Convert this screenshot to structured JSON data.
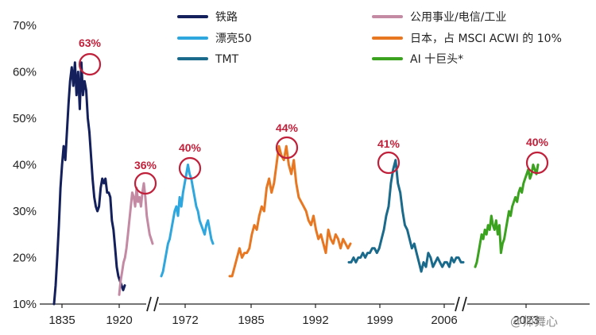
{
  "chart_data": {
    "type": "line",
    "title": "",
    "xlabel": "",
    "ylabel": "",
    "ylim": [
      10,
      70
    ],
    "y_ticks": [
      "10%",
      "20%",
      "30%",
      "40%",
      "50%",
      "60%",
      "70%"
    ],
    "x_ticks": [
      "1835",
      "1920",
      "1972",
      "1985",
      "1992",
      "1999",
      "2006",
      "2023"
    ],
    "axis_breaks": 2,
    "legend_position": "top, two columns",
    "series": [
      {
        "name": "铁路",
        "color": "#13205c",
        "peak_label": "63%",
        "x": [
          0,
          1,
          2,
          3,
          4,
          5,
          6,
          7,
          8,
          9,
          10,
          11,
          12,
          13,
          14,
          15,
          16,
          17,
          18,
          19,
          20,
          21,
          22,
          23,
          24,
          25,
          26,
          27,
          28,
          29,
          30,
          31,
          32,
          33,
          34,
          35,
          36,
          37,
          38,
          39,
          40,
          41,
          42,
          43,
          44
        ],
        "values": [
          10,
          14,
          20,
          27,
          35,
          40,
          44,
          41,
          47,
          53,
          58,
          61,
          57,
          62,
          55,
          60,
          52,
          62,
          55,
          58,
          56,
          50,
          47,
          42,
          37,
          33,
          31,
          30,
          31,
          35,
          37,
          36,
          37,
          34,
          34,
          33,
          28,
          26,
          22,
          18,
          16,
          15,
          14,
          13,
          14
        ]
      },
      {
        "name": "公用事业/电信/工业",
        "color": "#c48aa3",
        "peak_label": "36%",
        "x": [
          0,
          1,
          2,
          3,
          4,
          5,
          6,
          7,
          8,
          9,
          10,
          11,
          12,
          13,
          14,
          15,
          16,
          17,
          18,
          19,
          20,
          21,
          22,
          23
        ],
        "values": [
          12,
          15,
          17,
          19,
          20,
          22,
          25,
          28,
          31,
          34,
          33,
          31,
          35,
          32,
          33,
          31,
          34,
          36,
          33,
          29,
          27,
          25,
          24,
          23
        ]
      },
      {
        "name": "漂亮50",
        "color": "#2ea6de",
        "peak_label": "40%",
        "x": [
          0,
          1,
          2,
          3,
          4,
          5,
          6,
          7,
          8,
          9,
          10,
          11,
          12,
          13,
          14,
          15,
          16,
          17,
          18,
          19,
          20,
          21,
          22,
          23,
          24,
          25,
          26,
          27,
          28,
          29,
          30,
          31
        ],
        "values": [
          16,
          17,
          19,
          21,
          23,
          24,
          26,
          28,
          30,
          31,
          29,
          33,
          31,
          34,
          36,
          38,
          40,
          38,
          37,
          35,
          33,
          31,
          30,
          28,
          27,
          26,
          25,
          27,
          28,
          26,
          24,
          23
        ]
      },
      {
        "name": "日本，占 MSCI ACWI 的 10%",
        "color": "#e87722",
        "peak_label": "44%",
        "x": [
          0,
          1,
          2,
          3,
          4,
          5,
          6,
          7,
          8,
          9,
          10,
          11,
          12,
          13,
          14,
          15,
          16,
          17,
          18,
          19,
          20,
          21,
          22,
          23,
          24,
          25,
          26,
          27,
          28,
          29,
          30,
          31,
          32,
          33,
          34,
          35,
          36,
          37,
          38,
          39,
          40,
          41,
          42,
          43,
          44,
          45,
          46,
          47,
          48,
          49
        ],
        "values": [
          16,
          16,
          18,
          20,
          22,
          20,
          21,
          21,
          22,
          25,
          27,
          26,
          29,
          31,
          30,
          35,
          37,
          34,
          36,
          40,
          44,
          42,
          41,
          44,
          40,
          38,
          41,
          36,
          33,
          32,
          31,
          30,
          28,
          27,
          29,
          26,
          24,
          25,
          23,
          21,
          26,
          24,
          23,
          25,
          24,
          22,
          24,
          23,
          22,
          23
        ]
      },
      {
        "name": "TMT",
        "color": "#1a6a8c",
        "peak_label": "41%",
        "x": [
          0,
          1,
          2,
          3,
          4,
          5,
          6,
          7,
          8,
          9,
          10,
          11,
          12,
          13,
          14,
          15,
          16,
          17,
          18,
          19,
          20,
          21,
          22,
          23,
          24,
          25,
          26,
          27,
          28,
          29,
          30,
          31,
          32,
          33,
          34,
          35,
          36,
          37,
          38,
          39,
          40,
          41,
          42,
          43,
          44,
          45,
          46,
          47,
          48,
          49
        ],
        "values": [
          19,
          19,
          20,
          19,
          20,
          20,
          21,
          20,
          21,
          21,
          22,
          22,
          21,
          22,
          24,
          26,
          29,
          31,
          36,
          39,
          41,
          36,
          34,
          30,
          27,
          26,
          24,
          22,
          23,
          21,
          19,
          17,
          19,
          18,
          21,
          20,
          18,
          19,
          20,
          19,
          18,
          19,
          19,
          18,
          20,
          19,
          20,
          20,
          19,
          19
        ]
      },
      {
        "name": "AI 十巨头*",
        "color": "#3aa21e",
        "peak_label": "40%",
        "x": [
          0,
          1,
          2,
          3,
          4,
          5,
          6,
          7,
          8,
          9,
          10,
          11,
          12,
          13,
          14,
          15,
          16,
          17,
          18,
          19,
          20,
          21,
          22,
          23,
          24,
          25,
          26,
          27,
          28,
          29,
          30,
          31,
          32,
          33,
          34,
          35,
          36,
          37,
          38,
          39
        ],
        "values": [
          18,
          19,
          21,
          23,
          25,
          24,
          26,
          25,
          27,
          26,
          29,
          27,
          26,
          28,
          25,
          27,
          21,
          23,
          24,
          26,
          28,
          30,
          29,
          31,
          32,
          33,
          32,
          34,
          35,
          34,
          36,
          37,
          38,
          39,
          37,
          38,
          40,
          39,
          38,
          40
        ]
      }
    ]
  },
  "watermark": "@师舞心"
}
